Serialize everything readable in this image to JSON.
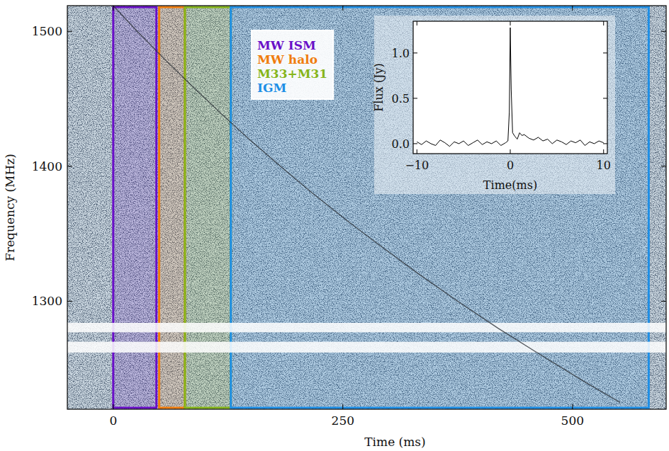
{
  "chart_data": [
    {
      "type": "waterfall",
      "x_label": "Time (ms)",
      "y_label": "Frequency (MHz)",
      "xlim": [
        -50,
        602
      ],
      "ylim": [
        1220,
        1519
      ],
      "xticks": [
        0,
        250,
        500
      ],
      "yticks": [
        1300,
        1400,
        1500
      ],
      "grid": false,
      "legend": "upper center",
      "regions": [
        {
          "name": "MW ISM",
          "color": "#6a0fc8",
          "xlim": [
            0,
            47
          ]
        },
        {
          "name": "MW halo",
          "color": "#f07c0c",
          "xlim": [
            50,
            78
          ]
        },
        {
          "name": "M33+M31",
          "color": "#86b51a",
          "xlim": [
            78,
            128
          ]
        },
        {
          "name": "IGM",
          "color": "#1e8fe6",
          "xlim": [
            128,
            583
          ]
        }
      ],
      "masked_bands": [
        [
          1277,
          1284
        ],
        [
          1262,
          1270
        ]
      ],
      "series": [
        {
          "color": "#2a2f36",
          "x": [
            0,
            26,
            55,
            85,
            116,
            148,
            182,
            217,
            254,
            293,
            333,
            375,
            419,
            466,
            514,
            552
          ],
          "values": [
            1519,
            1500,
            1480,
            1460,
            1440,
            1420,
            1400,
            1380,
            1360,
            1340,
            1320,
            1300,
            1280,
            1260,
            1240,
            1225
          ]
        }
      ]
    },
    {
      "type": "line",
      "x_label": "Time(ms)",
      "y_label": "Flux (Jy)",
      "xlim": [
        -10.4,
        10.4
      ],
      "ylim": [
        -0.11,
        1.35
      ],
      "xticks": [
        {
          "value": -10,
          "label": "−10"
        },
        0,
        10
      ],
      "yticks": [
        {
          "value": 0,
          "label": "0.0"
        },
        {
          "value": 0.5,
          "label": "0.5"
        },
        {
          "value": 1,
          "label": "1.0"
        }
      ],
      "grid": false,
      "series": [
        {
          "color": "#000000",
          "x": [
            -10,
            -9.5,
            -9,
            -8.5,
            -8,
            -7.5,
            -7,
            -6.5,
            -6,
            -5.5,
            -5,
            -4.5,
            -4,
            -3.5,
            -3,
            -2.5,
            -2,
            -1.5,
            -1,
            -0.5,
            -0.25,
            -0.1,
            0,
            0.1,
            0.25,
            0.5,
            0.75,
            1,
            1.25,
            1.5,
            2,
            2.5,
            3,
            3.5,
            4,
            4.5,
            5,
            5.5,
            6,
            6.5,
            7,
            7.5,
            8,
            8.5,
            9,
            9.5,
            10
          ],
          "values": [
            0.02,
            -0.01,
            0.03,
            0.0,
            -0.02,
            0.04,
            0.01,
            -0.03,
            0.02,
            0.0,
            0.03,
            -0.02,
            0.01,
            0.04,
            -0.01,
            0.02,
            0.0,
            0.03,
            -0.02,
            0.01,
            0.03,
            0.35,
            1.28,
            0.6,
            0.12,
            0.08,
            0.05,
            0.12,
            0.09,
            0.1,
            0.06,
            0.04,
            0.07,
            0.03,
            0.05,
            0.0,
            0.04,
            0.02,
            -0.01,
            0.03,
            0.01,
            0.04,
            -0.02,
            0.02,
            0.0,
            0.03,
            0.01
          ]
        }
      ]
    }
  ]
}
